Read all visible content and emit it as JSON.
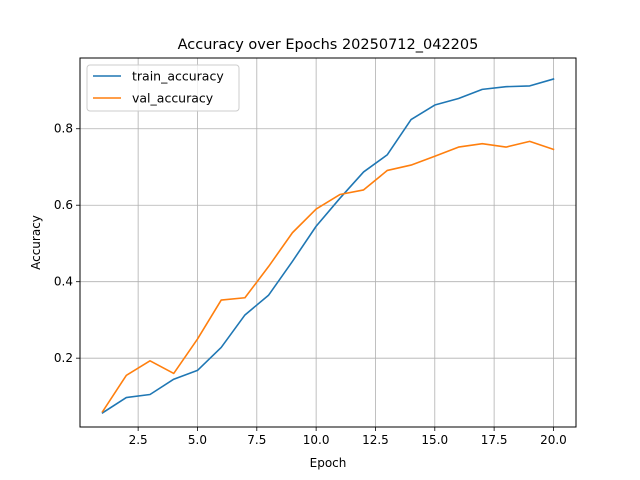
{
  "chart_data": {
    "type": "line",
    "title": "Accuracy over Epochs 20250712_042205",
    "xlabel": "Epoch",
    "ylabel": "Accuracy",
    "xlim": [
      0.05,
      20.95
    ],
    "ylim": [
      0.02,
      0.985
    ],
    "xticks": [
      2.5,
      5.0,
      7.5,
      10.0,
      12.5,
      15.0,
      17.5,
      20.0
    ],
    "xtick_labels": [
      "2.5",
      "5.0",
      "7.5",
      "10.0",
      "12.5",
      "15.0",
      "17.5",
      "20.0"
    ],
    "yticks": [
      0.2,
      0.4,
      0.6,
      0.8
    ],
    "ytick_labels": [
      "0.2",
      "0.4",
      "0.6",
      "0.8"
    ],
    "grid": true,
    "legend_position": "top-left",
    "x": [
      1,
      2,
      3,
      4,
      5,
      6,
      7,
      8,
      9,
      10,
      11,
      12,
      13,
      14,
      15,
      16,
      17,
      18,
      19,
      20
    ],
    "series": [
      {
        "name": "train_accuracy",
        "color": "#1f77b4",
        "values": [
          0.057,
          0.097,
          0.105,
          0.145,
          0.168,
          0.228,
          0.313,
          0.365,
          0.453,
          0.545,
          0.618,
          0.687,
          0.732,
          0.824,
          0.862,
          0.879,
          0.903,
          0.91,
          0.912,
          0.93
        ]
      },
      {
        "name": "val_accuracy",
        "color": "#ff7f0e",
        "values": [
          0.06,
          0.155,
          0.193,
          0.16,
          0.25,
          0.352,
          0.358,
          0.44,
          0.528,
          0.59,
          0.628,
          0.64,
          0.691,
          0.705,
          0.728,
          0.752,
          0.761,
          0.752,
          0.767,
          0.746
        ]
      }
    ]
  }
}
